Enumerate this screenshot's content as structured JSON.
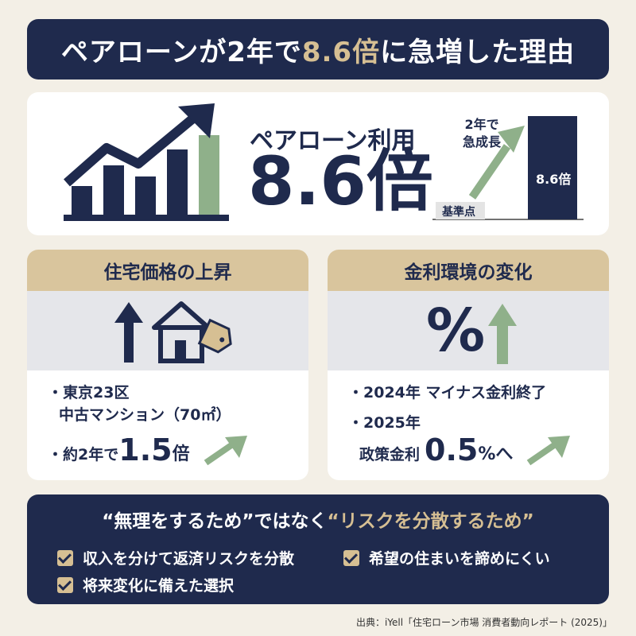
{
  "header": {
    "title_prefix": "ペアローンが2年で",
    "title_highlight": "8.6倍",
    "title_suffix": "に急増した理由"
  },
  "hero": {
    "label": "ペアローン利用",
    "value": "8.6倍",
    "mini_chart": {
      "growth_label_line1": "2年で",
      "growth_label_line2": "急成長",
      "base_label": "基準点",
      "bar_label": "8.6倍"
    }
  },
  "card_left": {
    "heading": "住宅価格の上昇",
    "line1": "東京23区",
    "line2": "中古マンション（70㎡）",
    "line3_prefix": "約2年で",
    "line3_value": "1.5",
    "line3_unit": "倍"
  },
  "card_right": {
    "heading": "金利環境の変化",
    "symbol": "%",
    "line1": "2024年 マイナス金利終了",
    "line2": "2025年",
    "line3_prefix": "政策金利",
    "line3_value": "0.5",
    "line3_unit": "%へ"
  },
  "bottom": {
    "quote1": "“無理をするため”",
    "middle": "ではなく",
    "quote2": "“リスクを分散するため”",
    "items": [
      "収入を分けて返済リスクを分散",
      "希望の住まいを諦めにくい",
      "将来変化に備えた選択"
    ]
  },
  "source": "出典：iYell「住宅ローン市場 消費者動向レポート (2025)」",
  "colors": {
    "navy": "#1f2a4d",
    "gold": "#d6bf93",
    "green": "#7fa37a",
    "beige_bg": "#f3efe6"
  }
}
